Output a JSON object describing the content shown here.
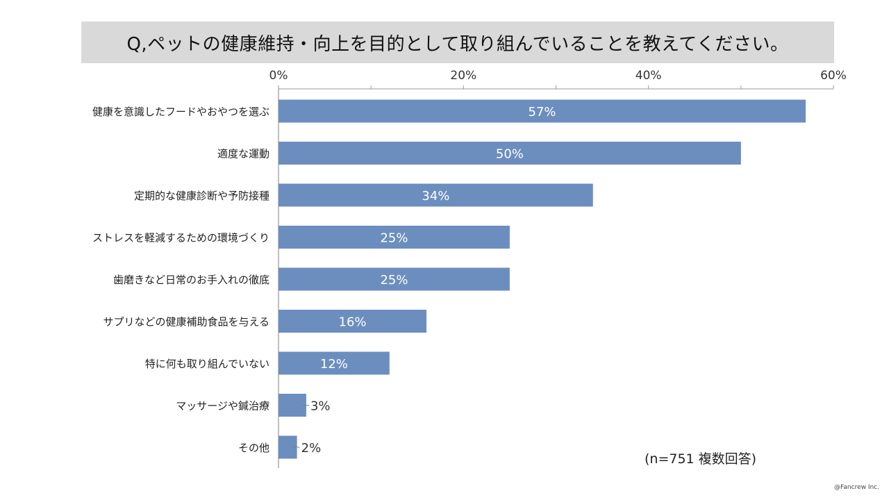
{
  "chart_data": {
    "type": "bar",
    "orientation": "horizontal",
    "title": "Q,ペットの健康維持・向上を目的として取り組んでいることを教えてください。",
    "categories": [
      "健康を意識したフードやおやつを選ぶ",
      "適度な運動",
      "定期的な健康診断や予防接種",
      "ストレスを軽減するための環境づくり",
      "歯磨きなど日常のお手入れの徹底",
      "サプリなどの健康補助食品を与える",
      "特に何も取り組んでいない",
      "マッサージや鍼治療",
      "その他"
    ],
    "values": [
      57,
      50,
      34,
      25,
      25,
      16,
      12,
      3,
      2
    ],
    "value_labels": [
      "57%",
      "50%",
      "34%",
      "25%",
      "25%",
      "16%",
      "12%",
      "3%",
      "2%"
    ],
    "xlim": [
      0,
      60
    ],
    "major_ticks": [
      0,
      20,
      40,
      60
    ],
    "tick_labels": [
      "0%",
      "20%",
      "40%",
      "60%"
    ],
    "minor_ticks": [
      10,
      30,
      50
    ],
    "axis_position": "top",
    "gridlines": false,
    "bar_color": "#6c8ebf",
    "inside_label_color": "#ffffff",
    "outside_label_color": "#333333",
    "note": "(n=751 複数回答)"
  },
  "footer": {
    "copyright": "@Fancrew Inc."
  }
}
